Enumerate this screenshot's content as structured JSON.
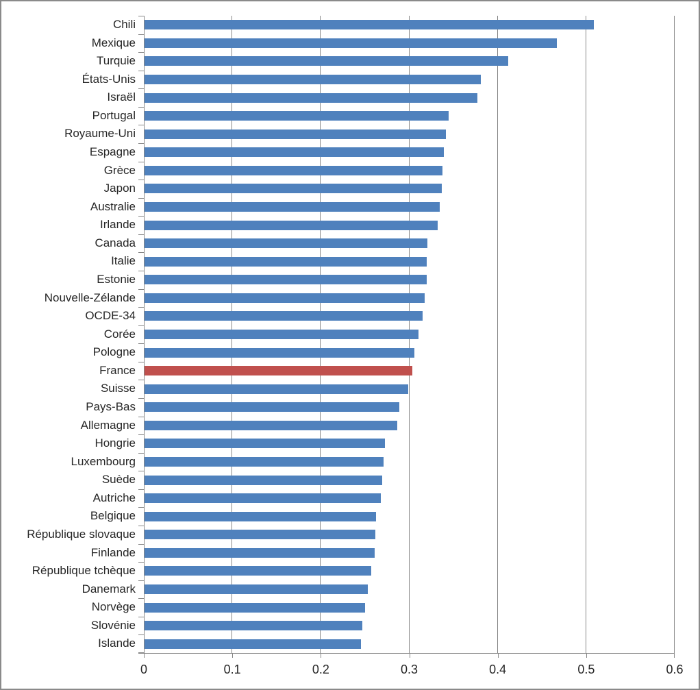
{
  "chart_data": {
    "type": "bar",
    "orientation": "horizontal",
    "title": "",
    "xlabel": "",
    "ylabel": "",
    "categories": [
      "Chili",
      "Mexique",
      "Turquie",
      "États-Unis",
      "Israël",
      "Portugal",
      "Royaume-Uni",
      "Espagne",
      "Grèce",
      "Japon",
      "Australie",
      "Irlande",
      "Canada",
      "Italie",
      "Estonie",
      "Nouvelle-Zélande",
      "OCDE-34",
      "Corée",
      "Pologne",
      "France",
      "Suisse",
      "Pays-Bas",
      "Allemagne",
      "Hongrie",
      "Luxembourg",
      "Suède",
      "Autriche",
      "Belgique",
      "République slovaque",
      "Finlande",
      "République tchèque",
      "Danemark",
      "Norvège",
      "Slovénie",
      "Islande"
    ],
    "values": [
      0.508,
      0.466,
      0.411,
      0.38,
      0.376,
      0.344,
      0.341,
      0.338,
      0.337,
      0.336,
      0.334,
      0.331,
      0.32,
      0.319,
      0.319,
      0.317,
      0.314,
      0.31,
      0.305,
      0.303,
      0.298,
      0.288,
      0.286,
      0.272,
      0.27,
      0.269,
      0.267,
      0.262,
      0.261,
      0.26,
      0.256,
      0.252,
      0.249,
      0.246,
      0.245
    ],
    "highlight_category": "France",
    "xlim": [
      0,
      0.6
    ],
    "x_ticks": [
      {
        "label": "0",
        "value": 0.0
      },
      {
        "label": "0.1",
        "value": 0.1
      },
      {
        "label": "0.2",
        "value": 0.2
      },
      {
        "label": "0.3",
        "value": 0.3
      },
      {
        "label": "0.4",
        "value": 0.4
      },
      {
        "label": "0.5",
        "value": 0.5
      },
      {
        "label": "0.6",
        "value": 0.6
      }
    ],
    "grid": true,
    "legend": "none",
    "colors": {
      "bar": "#4F81BD",
      "highlight": "#C0504D",
      "gridline": "#868686",
      "axis": "#868686",
      "text": "#262626",
      "frame_border": "#8A8A8A",
      "background": "#FFFFFF"
    }
  }
}
